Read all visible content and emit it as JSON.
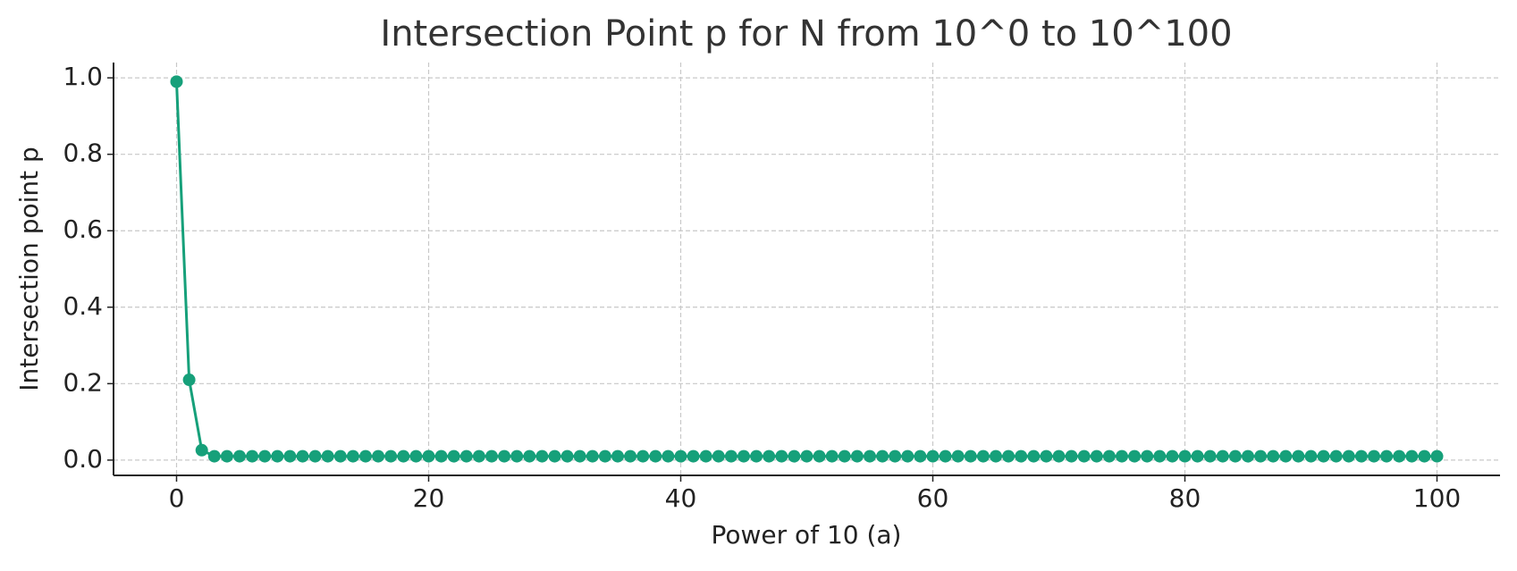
{
  "chart_data": {
    "type": "line",
    "title": "Intersection Point p for N from 10^0 to 10^100",
    "x_label": "Power of 10 (a)",
    "y_label": "Intersection point p",
    "x": [
      0,
      1,
      2,
      3,
      4,
      5,
      6,
      7,
      8,
      9,
      10,
      11,
      12,
      13,
      14,
      15,
      16,
      17,
      18,
      19,
      20,
      21,
      22,
      23,
      24,
      25,
      26,
      27,
      28,
      29,
      30,
      31,
      32,
      33,
      34,
      35,
      36,
      37,
      38,
      39,
      40,
      41,
      42,
      43,
      44,
      45,
      46,
      47,
      48,
      49,
      50,
      51,
      52,
      53,
      54,
      55,
      56,
      57,
      58,
      59,
      60,
      61,
      62,
      63,
      64,
      65,
      66,
      67,
      68,
      69,
      70,
      71,
      72,
      73,
      74,
      75,
      76,
      77,
      78,
      79,
      80,
      81,
      82,
      83,
      84,
      85,
      86,
      87,
      88,
      89,
      90,
      91,
      92,
      93,
      94,
      95,
      96,
      97,
      98,
      99,
      100
    ],
    "series": [
      {
        "color": "#16a07a",
        "values": [
          0.99,
          0.21,
          0.026,
          0.01,
          0.01,
          0.01,
          0.01,
          0.01,
          0.01,
          0.01,
          0.01,
          0.01,
          0.01,
          0.01,
          0.01,
          0.01,
          0.01,
          0.01,
          0.01,
          0.01,
          0.01,
          0.01,
          0.01,
          0.01,
          0.01,
          0.01,
          0.01,
          0.01,
          0.01,
          0.01,
          0.01,
          0.01,
          0.01,
          0.01,
          0.01,
          0.01,
          0.01,
          0.01,
          0.01,
          0.01,
          0.01,
          0.01,
          0.01,
          0.01,
          0.01,
          0.01,
          0.01,
          0.01,
          0.01,
          0.01,
          0.01,
          0.01,
          0.01,
          0.01,
          0.01,
          0.01,
          0.01,
          0.01,
          0.01,
          0.01,
          0.01,
          0.01,
          0.01,
          0.01,
          0.01,
          0.01,
          0.01,
          0.01,
          0.01,
          0.01,
          0.01,
          0.01,
          0.01,
          0.01,
          0.01,
          0.01,
          0.01,
          0.01,
          0.01,
          0.01,
          0.01,
          0.01,
          0.01,
          0.01,
          0.01,
          0.01,
          0.01,
          0.01,
          0.01,
          0.01,
          0.01,
          0.01,
          0.01,
          0.01,
          0.01,
          0.01,
          0.01,
          0.01,
          0.01,
          0.01,
          0.01
        ]
      }
    ],
    "xlim": [
      -5,
      105
    ],
    "ylim": [
      -0.04,
      1.04
    ],
    "xticks": [
      0,
      20,
      40,
      60,
      80,
      100
    ],
    "yticks": [
      {
        "value": 0,
        "label": "0.0"
      },
      0.2,
      0.4,
      0.6,
      0.8,
      {
        "value": 1,
        "label": "1.0"
      }
    ],
    "grid": true
  }
}
